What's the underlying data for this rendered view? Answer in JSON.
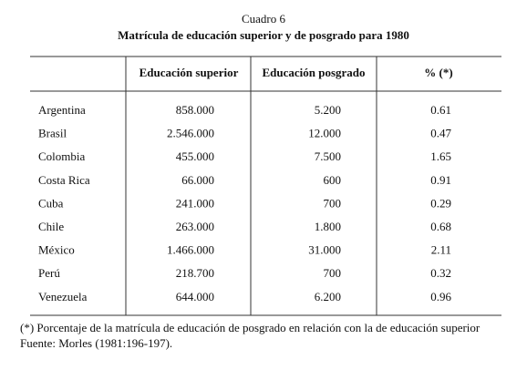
{
  "header": {
    "label": "Cuadro 6",
    "title": "Matrícula de educación superior y de posgrado para 1980"
  },
  "table": {
    "columns": [
      "",
      "Educación superior",
      "Educación posgrado",
      "% (*)"
    ],
    "rows": [
      [
        "Argentina",
        "858.000",
        "5.200",
        "0.61"
      ],
      [
        "Brasil",
        "2.546.000",
        "12.000",
        "0.47"
      ],
      [
        "Colombia",
        "455.000",
        "7.500",
        "1.65"
      ],
      [
        "Costa Rica",
        "66.000",
        "600",
        "0.91"
      ],
      [
        "Cuba",
        "241.000",
        "700",
        "0.29"
      ],
      [
        "Chile",
        "263.000",
        "1.800",
        "0.68"
      ],
      [
        "México",
        "1.466.000",
        "31.000",
        "2.11"
      ],
      [
        "Perú",
        "218.700",
        "700",
        "0.32"
      ],
      [
        "Venezuela",
        "644.000",
        "6.200",
        "0.96"
      ]
    ]
  },
  "footnotes": [
    "(*) Porcentaje de la matrícula de educación de posgrado en relación con la de educación superior",
    "Fuente: Morles (1981:196-197)."
  ]
}
